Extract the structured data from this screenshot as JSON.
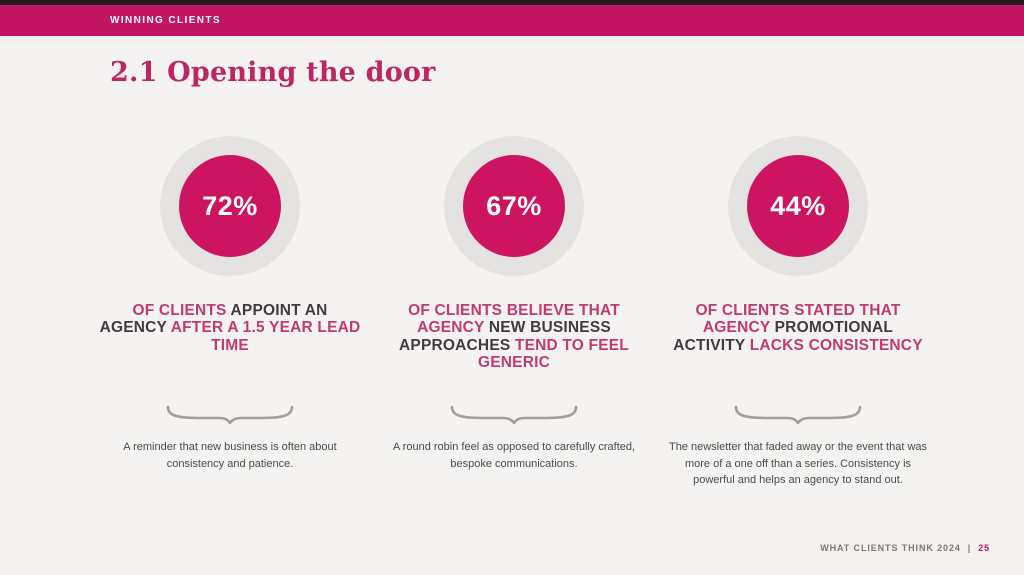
{
  "colors": {
    "brand_pink": "#C41562",
    "text_pink": "#C23A72",
    "dark_text": "#413B3F",
    "circle_pink": "#CC1460",
    "circle_gray": "#E4E3E1",
    "brace": "#A89E98",
    "top_strip": "#241B21",
    "background": "#F4F3F1"
  },
  "header": {
    "kicker": "WINNING CLIENTS",
    "title": "2.1 Opening the door"
  },
  "stats": [
    {
      "value": "72%",
      "headline_segments": [
        {
          "text": "OF CLIENTS ",
          "color": "pink"
        },
        {
          "text": "APPOINT AN AGENCY ",
          "color": "dark"
        },
        {
          "text": "AFTER A 1.5 YEAR LEAD TIME",
          "color": "pink"
        }
      ],
      "caption": "A reminder that new business is often about consistency and patience."
    },
    {
      "value": "67%",
      "headline_segments": [
        {
          "text": "OF CLIENTS BELIEVE THAT AGENCY ",
          "color": "pink"
        },
        {
          "text": "NEW BUSINESS APPROACHES ",
          "color": "dark"
        },
        {
          "text": "TEND TO FEEL GENERIC",
          "color": "pink"
        }
      ],
      "caption": "A round robin feel as opposed to carefully crafted, bespoke communications."
    },
    {
      "value": "44%",
      "headline_segments": [
        {
          "text": "OF CLIENTS STATED THAT AGENCY ",
          "color": "pink"
        },
        {
          "text": "PROMOTIONAL ACTIVITY ",
          "color": "dark"
        },
        {
          "text": "LACKS CONSISTENCY",
          "color": "pink"
        }
      ],
      "caption": "The newsletter that faded away or the event that was more of a one off than a series. Consistency is powerful and helps an agency to stand out."
    }
  ],
  "footer": {
    "label": "WHAT CLIENTS THINK 2024",
    "separator": "|",
    "page": "25"
  }
}
